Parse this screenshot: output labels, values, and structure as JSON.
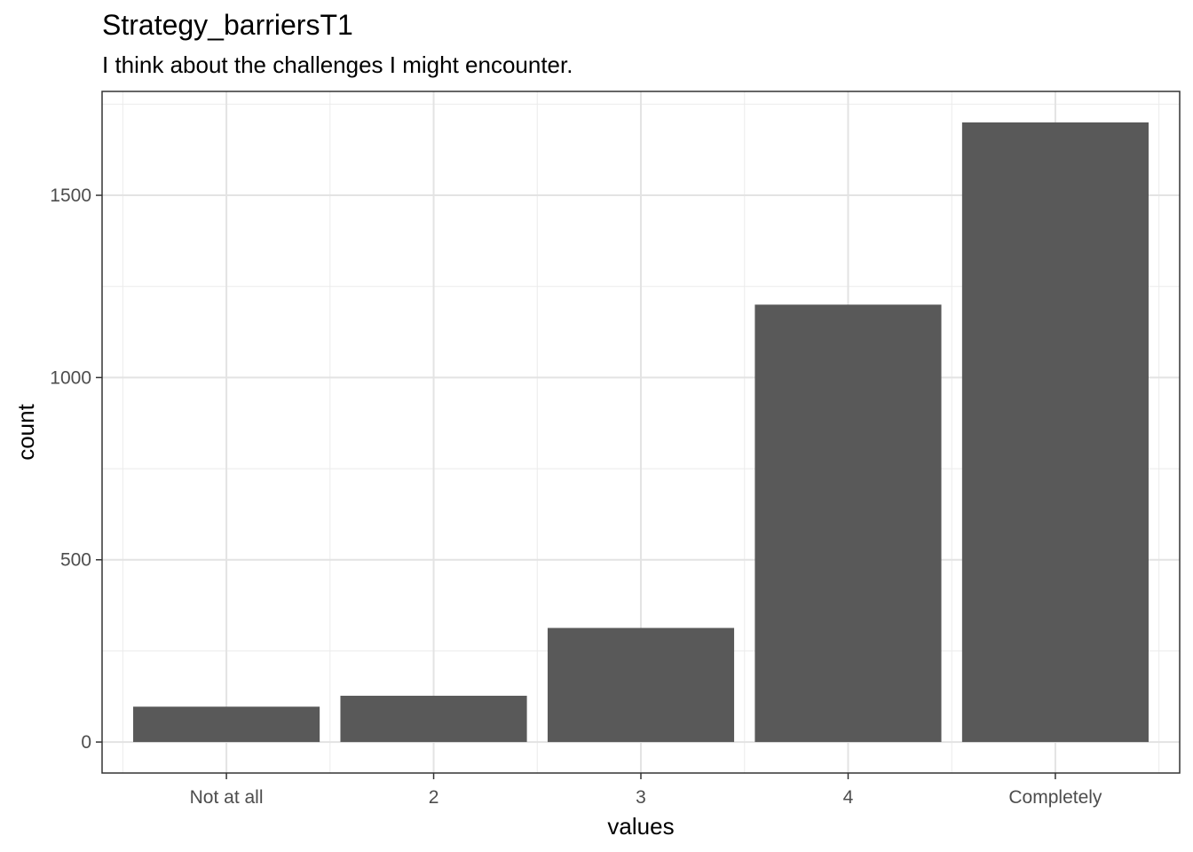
{
  "chart_data": {
    "type": "bar",
    "title": "Strategy_barriersT1",
    "subtitle": "I think about the challenges I might encounter.",
    "xlabel": "values",
    "ylabel": "count",
    "categories": [
      "Not at all",
      "2",
      "3",
      "4",
      "Completely"
    ],
    "values": [
      97,
      127,
      313,
      1200,
      1700
    ],
    "ylim": [
      -85,
      1785
    ],
    "yticks": [
      0,
      500,
      1000,
      1500
    ],
    "ytick_labels": [
      "0",
      "500",
      "1000",
      "1500"
    ],
    "grid": true,
    "legend": "none",
    "bar_color": "#595959"
  }
}
